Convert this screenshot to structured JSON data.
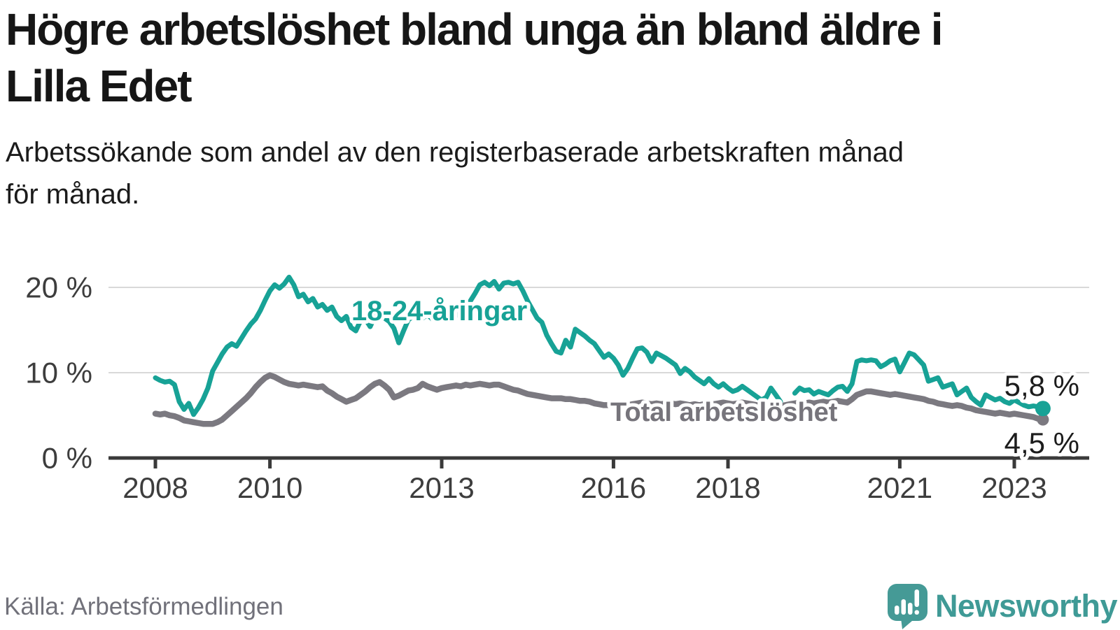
{
  "header": {
    "title_lines": [
      "Högre arbetslöshet bland unga än bland äldre i",
      "Lilla Edet"
    ],
    "subtitle_lines": [
      "Arbetssökande som andel av den registerbaserade arbetskraften månad",
      "för månad."
    ]
  },
  "footer": {
    "source": "Källa: Arbetsförmedlingen",
    "brand": "Newsworthy"
  },
  "colors": {
    "youth_teal": "#17a296",
    "total_gray": "#7b7980",
    "youth_label": "#17a296",
    "total_label": "#76747b",
    "axis": "#3a3a3a",
    "gridline": "#d9d9d9",
    "logo_teal": "#459a96"
  },
  "chart_data": {
    "type": "line",
    "title": "Högre arbetslöshet bland unga än bland äldre i Lilla Edet",
    "subtitle": "Arbetssökande som andel av den registerbaserade arbetskraften månad för månad.",
    "unit": "%",
    "frequency": "monthly",
    "x_start": "2008-01",
    "x_end": "2023-07",
    "ylim": [
      0,
      22
    ],
    "grid": "horizontal",
    "x_ticks": [
      2008,
      2010,
      2013,
      2016,
      2018,
      2021,
      2023
    ],
    "y_ticks": [
      {
        "value": 0,
        "label": "0 %"
      },
      {
        "value": 10,
        "label": "10 %"
      },
      {
        "value": 20,
        "label": "20 %"
      }
    ],
    "series": [
      {
        "name": "18-24-åringar",
        "color": "#17a296",
        "end_label": "5,8 %",
        "end_value": 5.8,
        "values": [
          9.4,
          9.1,
          8.9,
          9.0,
          8.6,
          6.6,
          5.7,
          6.4,
          5.1,
          5.9,
          6.9,
          8.2,
          10.2,
          11.2,
          12.2,
          13.0,
          13.4,
          13.1,
          14.0,
          14.9,
          15.7,
          16.3,
          17.3,
          18.5,
          19.6,
          20.3,
          19.9,
          20.4,
          21.2,
          20.3,
          18.9,
          19.2,
          18.3,
          18.7,
          17.7,
          18.0,
          17.3,
          17.7,
          16.6,
          16.1,
          16.6,
          15.3,
          14.9,
          16.1,
          16.3,
          15.4,
          16.6,
          17.0,
          16.4,
          16.0,
          15.2,
          13.5,
          14.9,
          16.2,
          16.6,
          17.0,
          16.4,
          16.8,
          16.3,
          16.6,
          17.0,
          16.6,
          17.1,
          16.7,
          17.3,
          17.8,
          18.4,
          19.3,
          20.3,
          20.6,
          20.2,
          20.7,
          19.8,
          20.5,
          20.6,
          20.4,
          20.6,
          19.6,
          18.4,
          17.4,
          16.4,
          15.9,
          14.4,
          13.4,
          12.5,
          12.3,
          13.8,
          13.0,
          15.1,
          14.7,
          14.3,
          13.8,
          13.4,
          12.6,
          11.8,
          12.2,
          11.7,
          10.9,
          9.7,
          10.5,
          11.7,
          12.8,
          12.9,
          12.4,
          11.3,
          12.3,
          12.0,
          11.7,
          11.3,
          10.9,
          9.9,
          10.5,
          10.1,
          9.5,
          9.1,
          8.7,
          9.3,
          8.7,
          8.3,
          8.7,
          8.2,
          7.8,
          8.0,
          8.4,
          8.0,
          7.6,
          7.2,
          6.8,
          7.1,
          8.2,
          7.4,
          6.6,
          null,
          null,
          7.6,
          8.2,
          7.9,
          8.0,
          7.5,
          7.8,
          7.6,
          7.4,
          7.9,
          8.3,
          8.4,
          7.8,
          8.7,
          11.3,
          11.5,
          11.4,
          11.5,
          11.4,
          10.7,
          11.0,
          11.4,
          11.6,
          10.1,
          11.2,
          12.3,
          12.1,
          11.5,
          10.9,
          9.0,
          9.2,
          9.4,
          8.3,
          8.5,
          8.7,
          7.4,
          7.8,
          8.2,
          7.1,
          6.6,
          6.2,
          7.4,
          7.1,
          6.8,
          7.0,
          6.6,
          6.4,
          6.8,
          6.5,
          6.2,
          6.0,
          6.1,
          6.0,
          5.8
        ]
      },
      {
        "name": "Total arbetslöshet",
        "color": "#7b7980",
        "end_label": "4,5 %",
        "end_value": 4.5,
        "values": [
          5.2,
          5.1,
          5.2,
          5.0,
          4.9,
          4.7,
          4.4,
          4.3,
          4.2,
          4.1,
          4.0,
          4.0,
          4.0,
          4.2,
          4.5,
          5.0,
          5.5,
          6.0,
          6.5,
          7.0,
          7.6,
          8.3,
          8.9,
          9.4,
          9.7,
          9.5,
          9.2,
          8.9,
          8.7,
          8.6,
          8.5,
          8.6,
          8.5,
          8.4,
          8.3,
          8.4,
          7.9,
          7.6,
          7.2,
          6.9,
          6.6,
          6.8,
          7.0,
          7.4,
          7.8,
          8.3,
          8.7,
          8.9,
          8.5,
          8.0,
          7.1,
          7.3,
          7.6,
          7.9,
          8.0,
          8.2,
          8.7,
          8.4,
          8.2,
          8.0,
          8.2,
          8.3,
          8.4,
          8.5,
          8.4,
          8.6,
          8.5,
          8.6,
          8.7,
          8.6,
          8.5,
          8.6,
          8.6,
          8.4,
          8.2,
          8.0,
          7.9,
          7.7,
          7.5,
          7.4,
          7.3,
          7.2,
          7.1,
          7.0,
          7.0,
          7.0,
          6.9,
          6.9,
          6.8,
          6.7,
          6.7,
          6.6,
          6.4,
          6.3,
          6.2,
          6.2,
          6.2,
          6.1,
          6.1,
          6.2,
          6.3,
          6.4,
          6.5,
          6.4,
          6.3,
          6.4,
          6.3,
          6.4,
          6.4,
          6.3,
          6.4,
          6.3,
          6.2,
          6.3,
          6.2,
          6.3,
          6.4,
          6.3,
          6.4,
          6.5,
          6.4,
          6.3,
          6.4,
          6.5,
          6.4,
          6.3,
          6.2,
          6.1,
          6.2,
          6.3,
          6.2,
          6.1,
          6.2,
          6.3,
          6.4,
          6.5,
          6.4,
          6.5,
          6.4,
          6.5,
          6.6,
          6.5,
          6.6,
          6.7,
          6.6,
          6.5,
          6.9,
          7.4,
          7.6,
          7.8,
          7.8,
          7.7,
          7.6,
          7.5,
          7.4,
          7.5,
          7.4,
          7.3,
          7.2,
          7.1,
          7.0,
          6.9,
          6.7,
          6.6,
          6.4,
          6.3,
          6.2,
          6.1,
          6.2,
          6.1,
          5.9,
          5.8,
          5.6,
          5.5,
          5.4,
          5.3,
          5.2,
          5.3,
          5.2,
          5.1,
          5.2,
          5.1,
          5.0,
          4.9,
          4.8,
          4.6,
          4.5
        ]
      }
    ],
    "legend_position": "inline-labels"
  }
}
